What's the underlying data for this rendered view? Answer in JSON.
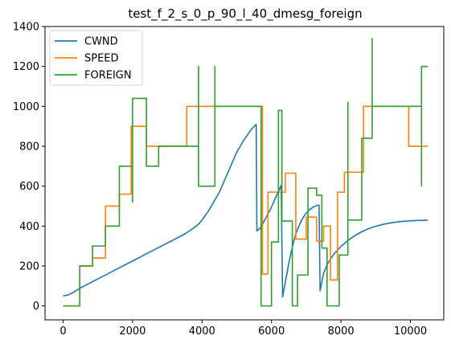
{
  "chart_data": {
    "type": "line",
    "title": "test_f_2_s_0_p_90_l_40_dmesg_foreign",
    "xlabel": "",
    "ylabel": "",
    "xlim": [
      -520,
      10960
    ],
    "ylim": [
      -70,
      1400
    ],
    "xticks": [
      0,
      2000,
      4000,
      6000,
      8000,
      10000
    ],
    "yticks": [
      0,
      200,
      400,
      600,
      800,
      1000,
      1200,
      1400
    ],
    "grid": false,
    "legend_position": "upper-left",
    "series": [
      {
        "name": "CWND",
        "color": "#1f77b4",
        "step": false,
        "points": [
          [
            0,
            50
          ],
          [
            150,
            55
          ],
          [
            300,
            68
          ],
          [
            500,
            90
          ],
          [
            1000,
            135
          ],
          [
            1500,
            180
          ],
          [
            2000,
            225
          ],
          [
            2500,
            270
          ],
          [
            3000,
            315
          ],
          [
            3500,
            360
          ],
          [
            3800,
            395
          ],
          [
            3900,
            410
          ],
          [
            4000,
            430
          ],
          [
            4100,
            455
          ],
          [
            4200,
            480
          ],
          [
            4300,
            510
          ],
          [
            4400,
            540
          ],
          [
            4500,
            570
          ],
          [
            4600,
            610
          ],
          [
            4700,
            650
          ],
          [
            4800,
            690
          ],
          [
            4900,
            730
          ],
          [
            5000,
            770
          ],
          [
            5100,
            800
          ],
          [
            5200,
            830
          ],
          [
            5300,
            855
          ],
          [
            5400,
            880
          ],
          [
            5500,
            900
          ],
          [
            5560,
            910
          ],
          [
            5580,
            375
          ],
          [
            5700,
            395
          ],
          [
            5850,
            445
          ],
          [
            6000,
            495
          ],
          [
            6150,
            555
          ],
          [
            6280,
            605
          ],
          [
            6320,
            45
          ],
          [
            6400,
            120
          ],
          [
            6500,
            215
          ],
          [
            6600,
            295
          ],
          [
            6700,
            360
          ],
          [
            6800,
            405
          ],
          [
            6900,
            440
          ],
          [
            7000,
            465
          ],
          [
            7100,
            483
          ],
          [
            7200,
            495
          ],
          [
            7300,
            503
          ],
          [
            7370,
            505
          ],
          [
            7400,
            75
          ],
          [
            7500,
            165
          ],
          [
            7600,
            205
          ],
          [
            7700,
            235
          ],
          [
            7800,
            260
          ],
          [
            8000,
            298
          ],
          [
            8200,
            328
          ],
          [
            8400,
            352
          ],
          [
            8600,
            372
          ],
          [
            8800,
            387
          ],
          [
            9000,
            399
          ],
          [
            9200,
            408
          ],
          [
            9400,
            415
          ],
          [
            9600,
            420
          ],
          [
            9800,
            424
          ],
          [
            10000,
            426
          ],
          [
            10200,
            428
          ],
          [
            10500,
            429
          ]
        ]
      },
      {
        "name": "SPEED",
        "color": "#ff7f0e",
        "step": true,
        "points": [
          [
            0,
            0
          ],
          [
            480,
            0
          ],
          [
            480,
            200
          ],
          [
            850,
            200
          ],
          [
            850,
            240
          ],
          [
            1220,
            240
          ],
          [
            1220,
            500
          ],
          [
            1620,
            500
          ],
          [
            1620,
            560
          ],
          [
            1960,
            560
          ],
          [
            1960,
            900
          ],
          [
            2400,
            900
          ],
          [
            2400,
            800
          ],
          [
            3560,
            800
          ],
          [
            3560,
            1000
          ],
          [
            5740,
            1000
          ],
          [
            5740,
            160
          ],
          [
            5900,
            160
          ],
          [
            5900,
            570
          ],
          [
            6400,
            570
          ],
          [
            6400,
            665
          ],
          [
            6700,
            665
          ],
          [
            6700,
            335
          ],
          [
            7000,
            335
          ],
          [
            7000,
            445
          ],
          [
            7300,
            445
          ],
          [
            7300,
            325
          ],
          [
            7500,
            325
          ],
          [
            7500,
            400
          ],
          [
            7700,
            400
          ],
          [
            7700,
            130
          ],
          [
            7900,
            130
          ],
          [
            7900,
            570
          ],
          [
            8100,
            570
          ],
          [
            8100,
            670
          ],
          [
            8650,
            670
          ],
          [
            8650,
            1000
          ],
          [
            9950,
            1000
          ],
          [
            9950,
            800
          ],
          [
            10500,
            800
          ]
        ]
      },
      {
        "name": "FOREIGN",
        "color": "#2ca02c",
        "step": true,
        "points": [
          [
            0,
            0
          ],
          [
            480,
            0
          ],
          [
            480,
            200
          ],
          [
            850,
            200
          ],
          [
            850,
            300
          ],
          [
            1220,
            300
          ],
          [
            1220,
            400
          ],
          [
            1620,
            400
          ],
          [
            1620,
            700
          ],
          [
            2000,
            700
          ],
          [
            2000,
            520
          ],
          [
            2000,
            1040
          ],
          [
            2400,
            1040
          ],
          [
            2400,
            700
          ],
          [
            2750,
            700
          ],
          [
            2750,
            800
          ],
          [
            3900,
            800
          ],
          [
            3900,
            1200
          ],
          [
            3900,
            600
          ],
          [
            4370,
            600
          ],
          [
            4370,
            1200
          ],
          [
            4370,
            1000
          ],
          [
            5700,
            1000
          ],
          [
            5700,
            0
          ],
          [
            6000,
            0
          ],
          [
            6000,
            320
          ],
          [
            6200,
            320
          ],
          [
            6200,
            980
          ],
          [
            6300,
            980
          ],
          [
            6300,
            425
          ],
          [
            6600,
            425
          ],
          [
            6600,
            0
          ],
          [
            6750,
            0
          ],
          [
            6750,
            155
          ],
          [
            7050,
            155
          ],
          [
            7050,
            590
          ],
          [
            7300,
            590
          ],
          [
            7300,
            555
          ],
          [
            7450,
            555
          ],
          [
            7450,
            290
          ],
          [
            7600,
            290
          ],
          [
            7600,
            0
          ],
          [
            7950,
            0
          ],
          [
            7950,
            255
          ],
          [
            8200,
            255
          ],
          [
            8200,
            1020
          ],
          [
            8200,
            430
          ],
          [
            8600,
            430
          ],
          [
            8600,
            840
          ],
          [
            8900,
            840
          ],
          [
            8900,
            1340
          ],
          [
            8900,
            1000
          ],
          [
            10320,
            1000
          ],
          [
            10320,
            600
          ],
          [
            10320,
            1200
          ],
          [
            10500,
            1200
          ]
        ]
      }
    ]
  }
}
